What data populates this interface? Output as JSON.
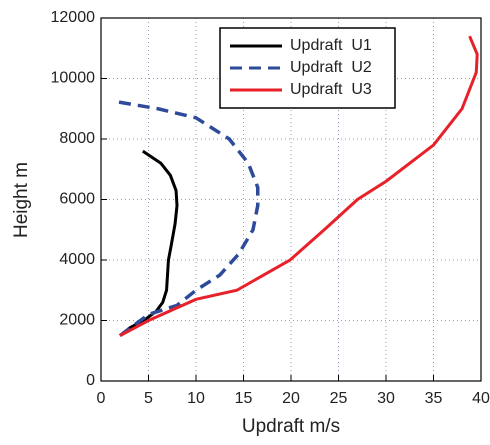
{
  "chart_data": {
    "type": "line",
    "xlabel": "Updraft m/s",
    "ylabel": "Height m",
    "xlim": [
      0,
      40
    ],
    "xticks": [
      0,
      5,
      10,
      15,
      20,
      25,
      30,
      35,
      40
    ],
    "ylim": [
      0,
      12000
    ],
    "yticks": [
      0,
      2000,
      4000,
      6000,
      8000,
      10000,
      12000
    ],
    "grid": true,
    "legend": "upper right",
    "series": [
      {
        "name": "Updraft  U1",
        "color": "#000000",
        "linestyle": "solid",
        "x": [
          2,
          3,
          4.5,
          5.8,
          6.5,
          6.9,
          7.0,
          7.1,
          7.4,
          7.8,
          8.0,
          7.9,
          7.3,
          6.3,
          4.4
        ],
        "values": [
          1500,
          1750,
          2000,
          2300,
          2600,
          3000,
          3500,
          4000,
          4500,
          5200,
          5800,
          6300,
          6800,
          7200,
          7600
        ]
      },
      {
        "name": "Updraft  U2",
        "color": "#2e4a9a",
        "linestyle": "dashed",
        "x": [
          2,
          5,
          8,
          10,
          12.5,
          14.5,
          16,
          16.5,
          16.5,
          15.5,
          13.5,
          10,
          6,
          1.3
        ],
        "values": [
          1500,
          2200,
          2500,
          3000,
          3500,
          4200,
          5000,
          5800,
          6400,
          7200,
          8000,
          8700,
          9000,
          9250
        ]
      },
      {
        "name": "Updraft  U3",
        "color": "#e8202a",
        "linestyle": "solid",
        "x": [
          2,
          5,
          10,
          14.3,
          19.9,
          23.5,
          27,
          30,
          35,
          38,
          39.5,
          39.6,
          38.8
        ],
        "values": [
          1500,
          2000,
          2700,
          3000,
          4000,
          5000,
          6000,
          6600,
          7800,
          9000,
          10200,
          10800,
          11400
        ]
      }
    ]
  }
}
